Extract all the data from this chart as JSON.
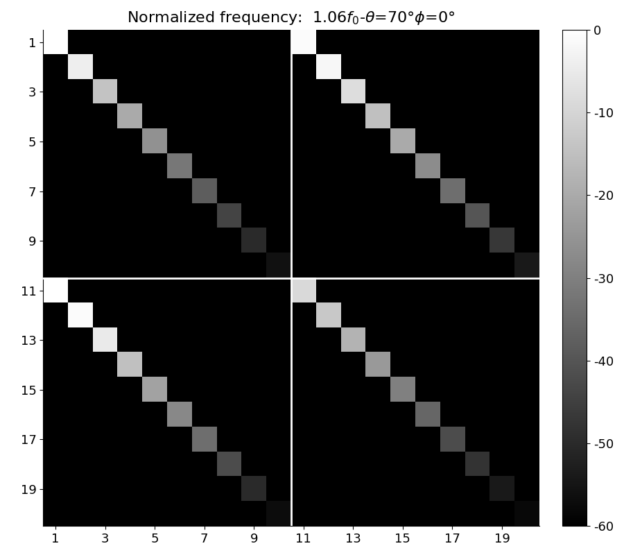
{
  "clim": [
    -60,
    0
  ],
  "n": 20,
  "colormap": "gray",
  "xticks": [
    1,
    3,
    5,
    7,
    9,
    11,
    13,
    15,
    17,
    19
  ],
  "yticks": [
    1,
    3,
    5,
    7,
    9,
    11,
    13,
    15,
    17,
    19
  ],
  "colorbar_ticks": [
    0,
    -10,
    -20,
    -30,
    -40,
    -50,
    -60
  ],
  "diagonal_values_TL": [
    0,
    -4,
    -14,
    -20,
    -26,
    -32,
    -38,
    -44,
    -50,
    -56
  ],
  "diagonal_values_TR": [
    -1,
    -2,
    -8,
    -15,
    -20,
    -27,
    -34,
    -40,
    -47,
    -54
  ],
  "diagonal_values_BL": [
    0,
    -1,
    -5,
    -15,
    -22,
    -28,
    -34,
    -42,
    -50,
    -57
  ],
  "diagonal_values_BR": [
    -9,
    -13,
    -18,
    -24,
    -30,
    -36,
    -42,
    -48,
    -54,
    -58
  ],
  "figsize": [
    9.0,
    8.0
  ],
  "dpi": 100
}
